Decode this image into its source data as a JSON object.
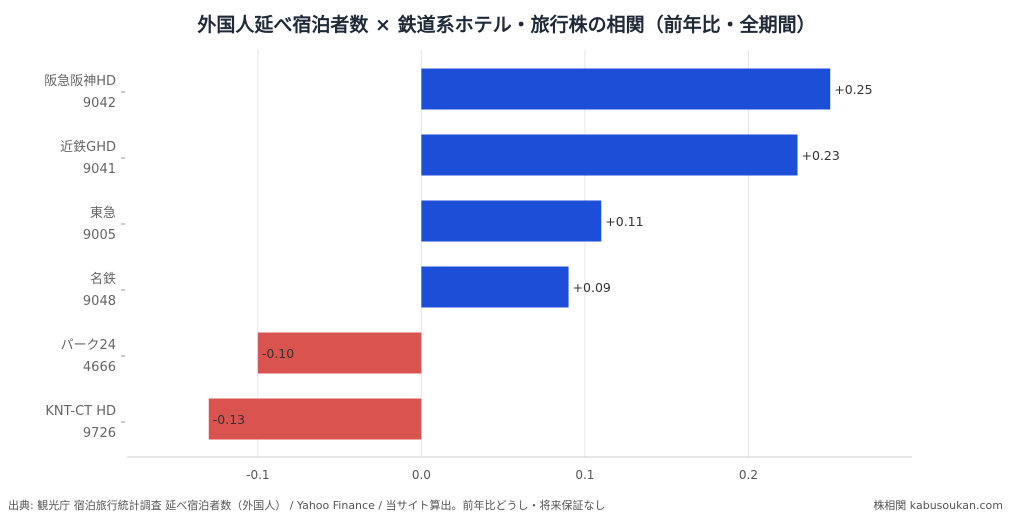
{
  "title": "外国人延べ宿泊者数 × 鉄道系ホテル・旅行株の相関（前年比・全期間）",
  "source": "出典: 観光庁 宿泊旅行統計調査 延べ宿泊者数（外国人） / Yahoo Finance / 当サイト算出。前年比どうし・将来保証なし",
  "credit": "株相関 kabusoukan.com",
  "colors": {
    "positive": "#1d4ed8",
    "negative": "#d9534f",
    "grid": "#e5e5e5",
    "axis": "#cccccc"
  },
  "chart_data": {
    "type": "bar",
    "orientation": "horizontal",
    "categories": [
      {
        "name": "阪急阪神HD",
        "code": "9042"
      },
      {
        "name": "近鉄GHD",
        "code": "9041"
      },
      {
        "name": "東急",
        "code": "9005"
      },
      {
        "name": "名鉄",
        "code": "9048"
      },
      {
        "name": "パーク24",
        "code": "4666"
      },
      {
        "name": "KNT-CT HD",
        "code": "9726"
      }
    ],
    "values": [
      0.25,
      0.23,
      0.11,
      0.09,
      -0.1,
      -0.13
    ],
    "data_labels": [
      "+0.25",
      "+0.23",
      "+0.11",
      "+0.09",
      "-0.10",
      "-0.13"
    ],
    "xlim": [
      -0.18,
      0.3
    ],
    "xticks": [
      -0.1,
      0.0,
      0.1,
      0.2
    ],
    "xtick_labels": [
      "-0.1",
      "0.0",
      "0.1",
      "0.2"
    ],
    "grid": true
  }
}
